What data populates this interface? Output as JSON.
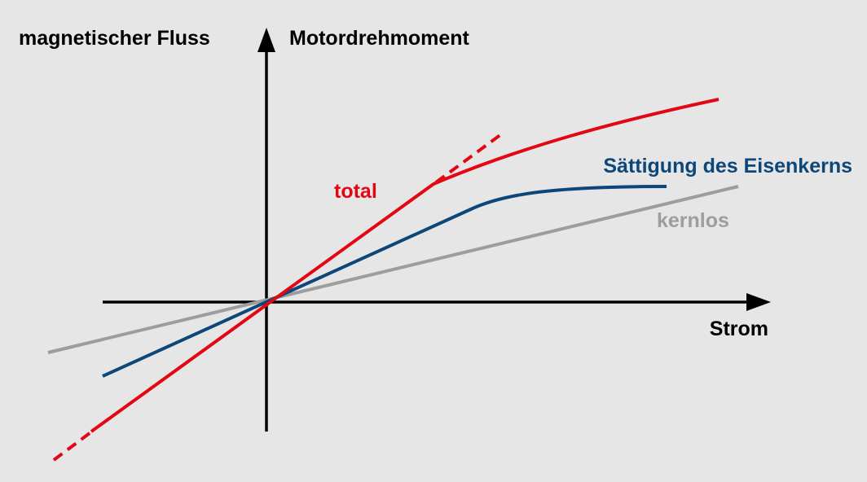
{
  "axes": {
    "y_label_left": "magnetischer Fluss",
    "y_label_right": "Motordrehmoment",
    "x_label": "Strom"
  },
  "curves": {
    "total": {
      "label": "total",
      "color": "#e30613"
    },
    "saturation": {
      "label": "Sättigung des Eisenkerns",
      "color": "#0d4679"
    },
    "coreless": {
      "label": "kernlos",
      "color": "#9d9d9d"
    }
  },
  "colors": {
    "axis": "#000000",
    "background": "#e6e6e6"
  }
}
